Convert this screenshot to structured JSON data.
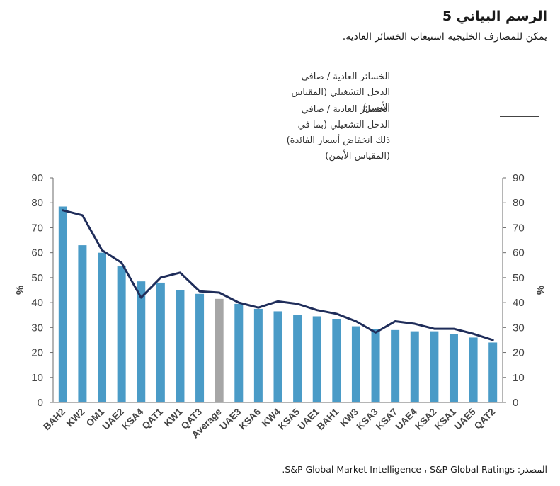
{
  "header": {
    "title": "الرسم البياني 5",
    "subtitle": "يمكن للمصارف الخليجية استيعاب الخسائر العادية."
  },
  "legend": {
    "item1": "الخسائر العادية / صافي الدخل التشغيلي (المقياس الأيسر)",
    "item2": "الخسائر العادية / صافي الدخل التشغيلي (بما في ذلك انخفاض أسعار الفائدة) (المقياس الأيمن)"
  },
  "source": "المصدر: S&P Global Market Intelligence ، S&P Global Ratings.",
  "chart_data": {
    "type": "bar",
    "categories": [
      "BAH2",
      "KW2",
      "OM1",
      "UAE2",
      "KSA4",
      "QAT1",
      "KW1",
      "QAT3",
      "Average",
      "UAE3",
      "KSA6",
      "KW4",
      "KSA5",
      "UAE1",
      "BAH1",
      "KW3",
      "KSA3",
      "KSA7",
      "UAE4",
      "KSA2",
      "KSA1",
      "UAE5",
      "QAT2"
    ],
    "series": [
      {
        "type": "bar",
        "axis": "left",
        "values": [
          78.5,
          63,
          60,
          54.5,
          48.5,
          48,
          45,
          43.5,
          41.5,
          39.5,
          37.5,
          36.5,
          35,
          34.5,
          33.5,
          30.5,
          29.5,
          29,
          28.5,
          28.5,
          27.5,
          26,
          24
        ],
        "color": "#4a9bc7",
        "highlight": {
          "category": "Average",
          "color": "#a6a6a6"
        }
      },
      {
        "type": "line",
        "axis": "right",
        "values": [
          77,
          75,
          61,
          56,
          42,
          50,
          52,
          44.5,
          44,
          40,
          38,
          40.5,
          39.5,
          37,
          35.5,
          32.5,
          28,
          32.5,
          31.5,
          29.5,
          29.5,
          27.5,
          25
        ],
        "color": "#1f2d5a"
      }
    ],
    "ylabel_left": "%",
    "ylabel_right": "%",
    "ylim": [
      0,
      90
    ],
    "yticks": [
      0,
      10,
      20,
      30,
      40,
      50,
      60,
      70,
      80,
      90
    ],
    "grid": false,
    "legend_position": "top-right"
  }
}
